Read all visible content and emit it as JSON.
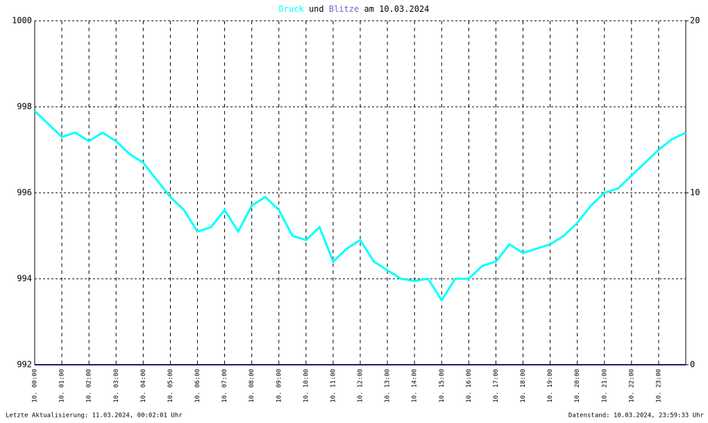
{
  "chart_data": {
    "type": "line",
    "title_parts": [
      {
        "text": "Druck",
        "color": "#00ffff"
      },
      {
        "text": "und",
        "color": "#000000"
      },
      {
        "text": "Blitze",
        "color": "#7a5cc8"
      },
      {
        "text": "am 10.03.2024",
        "color": "#000000"
      }
    ],
    "footer_left": "Letzte Aktualisierung: 11.03.2024, 00:02:01 Uhr",
    "footer_right": "Datenstand: 10.03.2024, 23:59:33 Uhr",
    "xlim": [
      0,
      24
    ],
    "xticks": [
      {
        "value": 0,
        "label": "10. 00:00"
      },
      {
        "value": 1,
        "label": "10. 01:00"
      },
      {
        "value": 2,
        "label": "10. 02:00"
      },
      {
        "value": 3,
        "label": "10. 03:00"
      },
      {
        "value": 4,
        "label": "10. 04:00"
      },
      {
        "value": 5,
        "label": "10. 05:00"
      },
      {
        "value": 6,
        "label": "10. 06:00"
      },
      {
        "value": 7,
        "label": "10. 07:00"
      },
      {
        "value": 8,
        "label": "10. 08:00"
      },
      {
        "value": 9,
        "label": "10. 09:00"
      },
      {
        "value": 10,
        "label": "10. 10:00"
      },
      {
        "value": 11,
        "label": "10. 11:00"
      },
      {
        "value": 12,
        "label": "10. 12:00"
      },
      {
        "value": 13,
        "label": "10. 13:00"
      },
      {
        "value": 14,
        "label": "10. 14:00"
      },
      {
        "value": 15,
        "label": "10. 15:00"
      },
      {
        "value": 16,
        "label": "10. 16:00"
      },
      {
        "value": 17,
        "label": "10. 17:00"
      },
      {
        "value": 18,
        "label": "10. 18:00"
      },
      {
        "value": 19,
        "label": "10. 19:00"
      },
      {
        "value": 20,
        "label": "10. 20:00"
      },
      {
        "value": 21,
        "label": "10. 21:00"
      },
      {
        "value": 22,
        "label": "10. 22:00"
      },
      {
        "value": 23,
        "label": "10. 23:00"
      }
    ],
    "ylim": [
      992,
      1000
    ],
    "yticks": [
      992,
      994,
      996,
      998,
      1000
    ],
    "y2lim": [
      0,
      20
    ],
    "y2ticks": [
      0,
      10,
      20
    ],
    "grid": true,
    "series": [
      {
        "name": "Druck",
        "color": "#00ffff",
        "x": [
          0,
          0.5,
          1,
          1.5,
          2,
          2.5,
          3,
          3.5,
          4,
          4.5,
          5,
          5.5,
          6,
          6.5,
          7,
          7.5,
          8,
          8.5,
          9,
          9.5,
          10,
          10.5,
          11,
          11.5,
          12,
          12.5,
          13,
          13.5,
          14,
          14.5,
          15,
          15.5,
          16,
          16.5,
          17,
          17.5,
          18,
          18.5,
          19,
          19.5,
          20,
          20.5,
          21,
          21.5,
          22,
          22.5,
          23,
          23.5,
          24
        ],
        "values": [
          997.9,
          997.6,
          997.3,
          997.4,
          997.2,
          997.4,
          997.2,
          996.9,
          996.7,
          996.3,
          995.9,
          995.6,
          995.1,
          995.2,
          995.6,
          995.1,
          995.7,
          995.9,
          995.6,
          995.0,
          994.9,
          995.2,
          994.4,
          994.7,
          994.9,
          994.4,
          994.2,
          994.0,
          993.95,
          994.0,
          993.5,
          994.0,
          994.0,
          994.3,
          994.4,
          994.8,
          994.6,
          994.7,
          994.8,
          995.0,
          995.3,
          995.7,
          996.0,
          996.1,
          996.4,
          996.7,
          997.0,
          997.25,
          997.4
        ]
      },
      {
        "name": "Blitze",
        "color": "#1a1a6e",
        "axis": "y2",
        "x": [
          0,
          24
        ],
        "values": [
          0,
          0
        ]
      }
    ]
  }
}
